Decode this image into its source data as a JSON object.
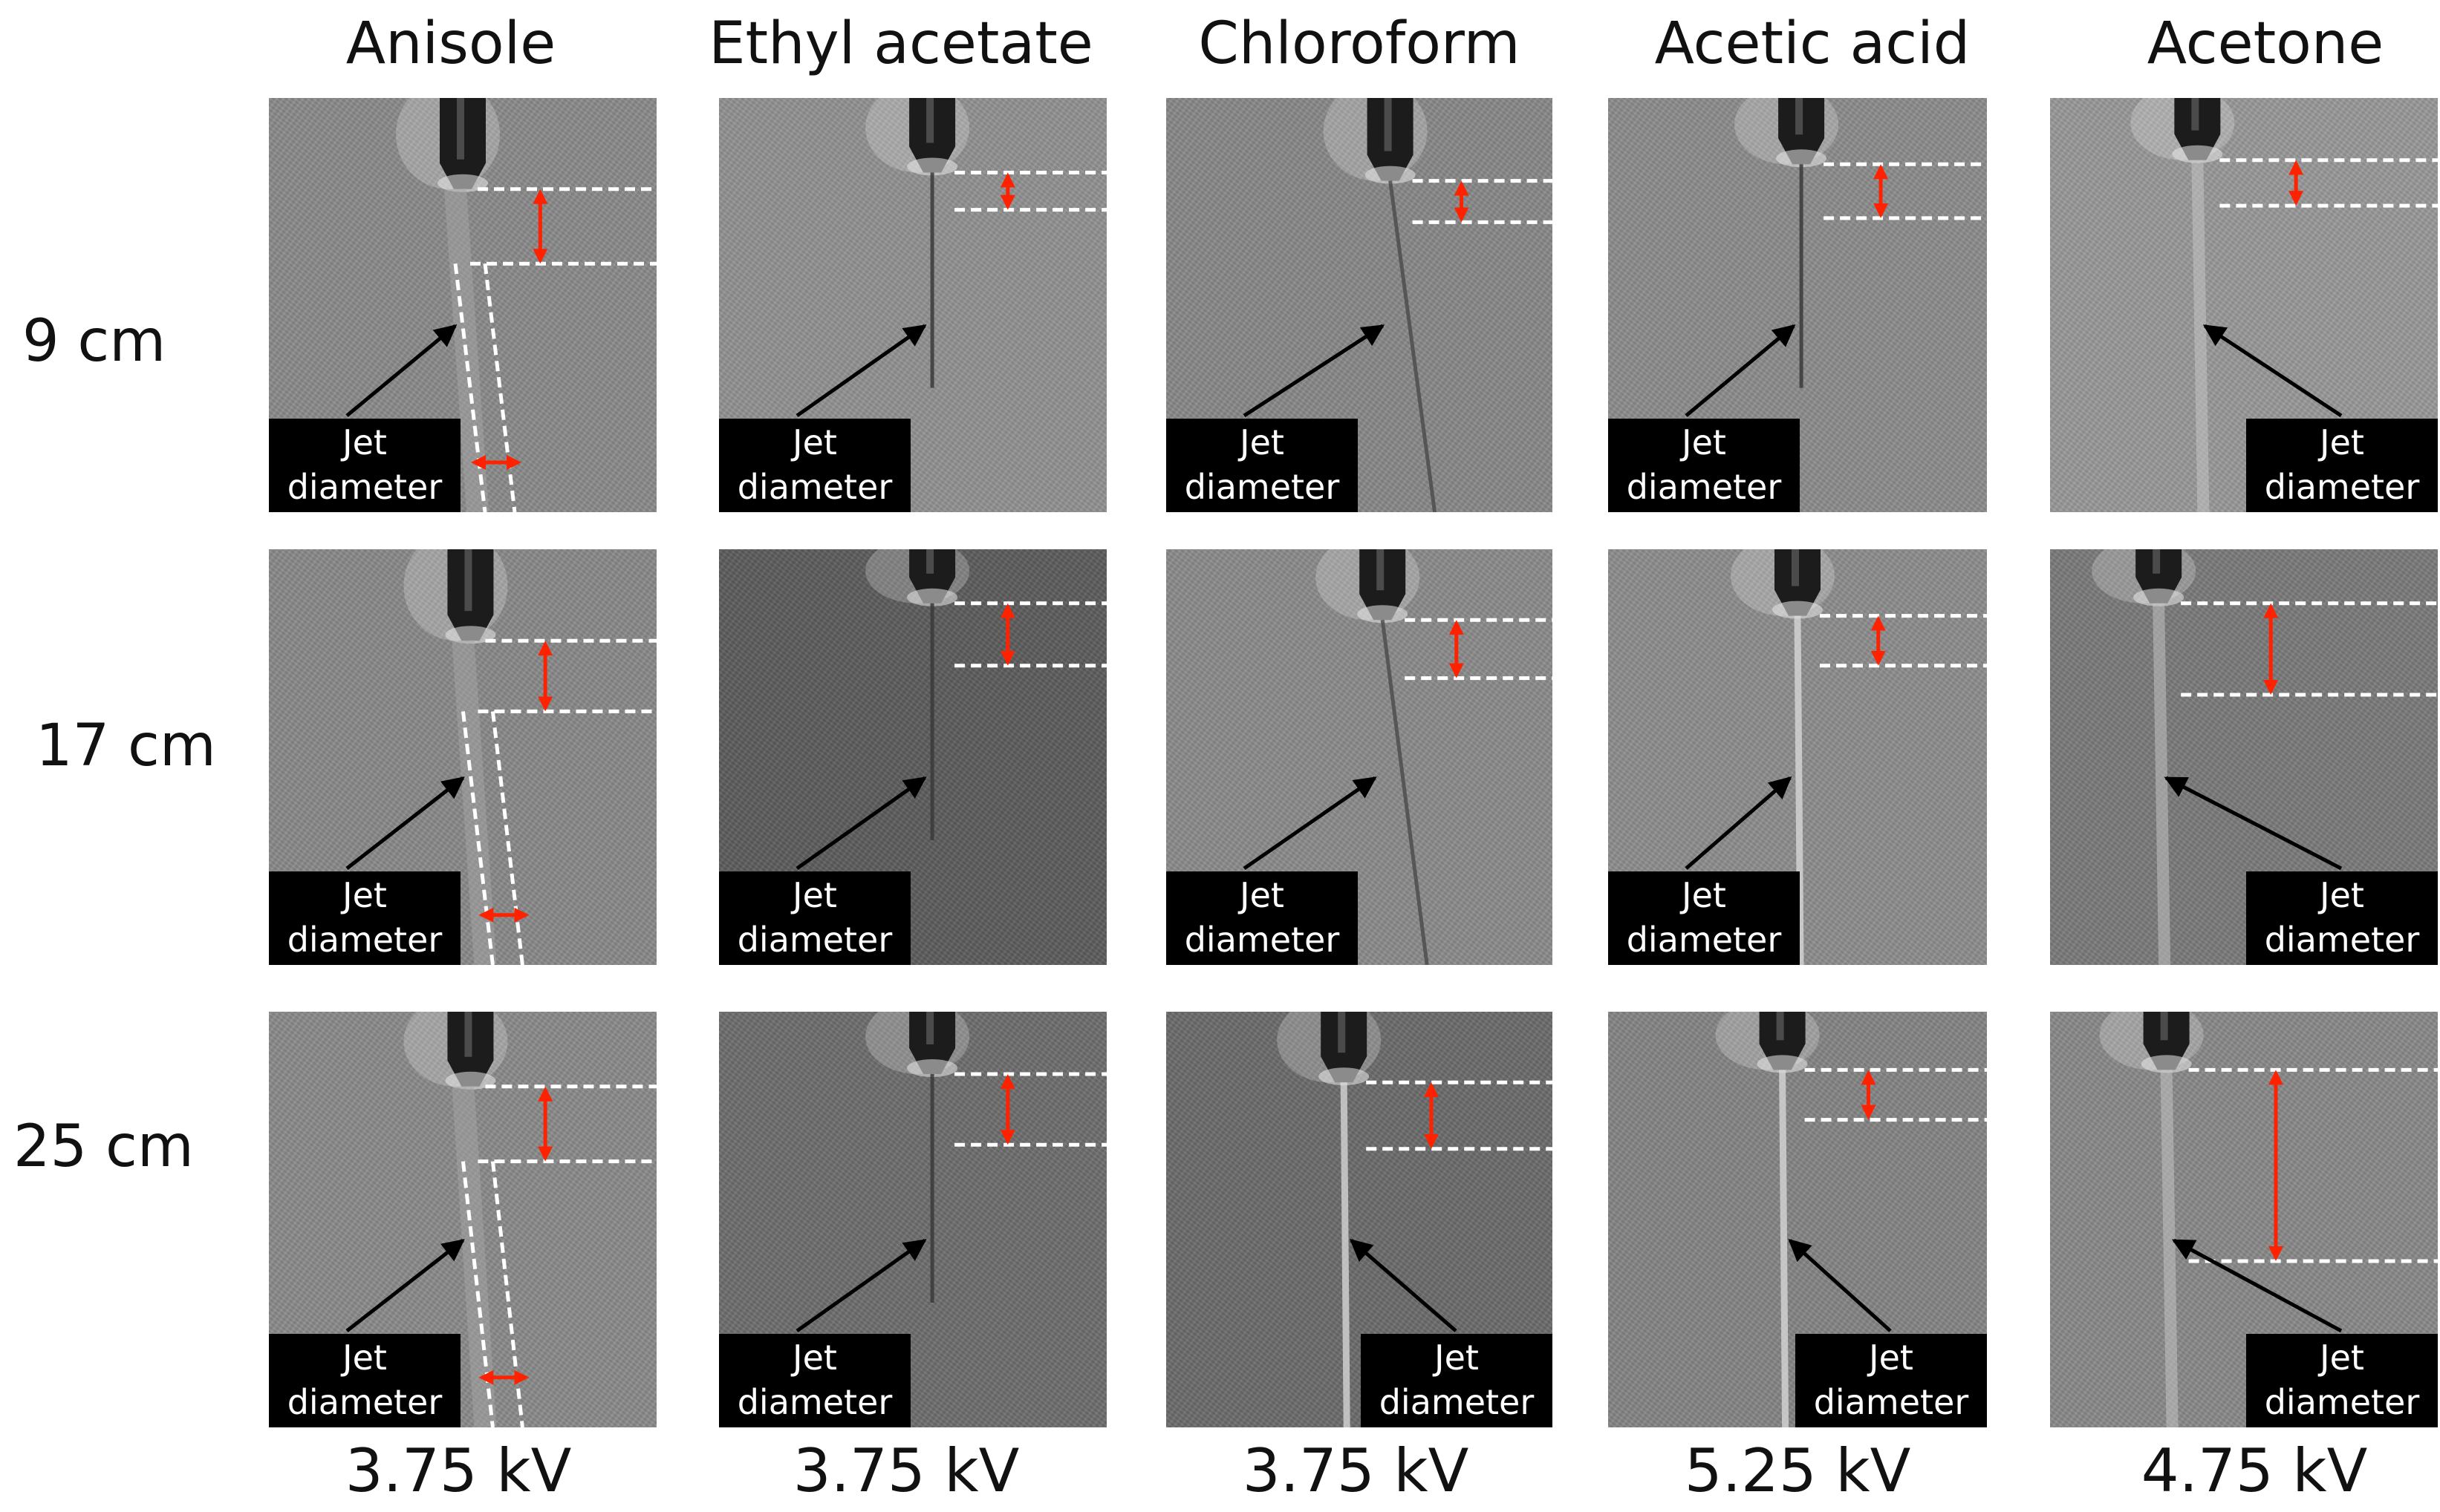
{
  "columns": [
    "Anisole",
    "Ethyl acetate",
    "Chloroform",
    "Acetic acid",
    "Acetone"
  ],
  "rows": [
    "9 cm",
    "17 cm",
    "25 cm"
  ],
  "voltages": [
    "3.75 kV",
    "3.75 kV",
    "3.75 kV",
    "5.25 kV",
    "4.75 kV"
  ],
  "annotation": {
    "line1": "Jet",
    "line2": "diameter"
  },
  "colors": {
    "arrow_red": "#ff2200",
    "dashed_line": "#ffffff",
    "label_bg": "#000000",
    "arrow_black": "#000000"
  },
  "icons": [
    "needle-nozzle",
    "jet-stream",
    "measurement-arrow",
    "pointer-arrow"
  ]
}
